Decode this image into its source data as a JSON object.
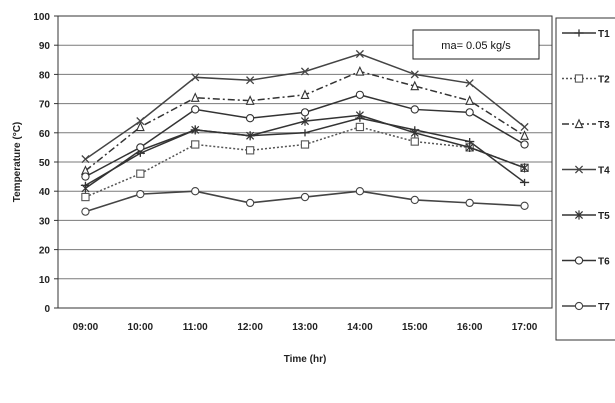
{
  "chart_data": {
    "type": "line",
    "title": "",
    "xlabel": "Time (hr)",
    "ylabel": "Temperature (°C)",
    "categories": [
      "09:00",
      "10:00",
      "11:00",
      "12:00",
      "13:00",
      "14:00",
      "15:00",
      "16:00",
      "17:00"
    ],
    "ylim": [
      0,
      100
    ],
    "yticks": [
      0,
      10,
      20,
      30,
      40,
      50,
      60,
      70,
      80,
      90,
      100
    ],
    "grid": "horizontal",
    "legend_position": "right",
    "annotation": "ma= 0.05 kg/s",
    "series": [
      {
        "name": "T1",
        "marker": "plus",
        "dash": "solid",
        "color": "#333333",
        "values": [
          42,
          53,
          61,
          59,
          60,
          65,
          61,
          57,
          43
        ]
      },
      {
        "name": "T2",
        "marker": "square",
        "dash": "dotted",
        "color": "#555555",
        "values": [
          38,
          46,
          56,
          54,
          56,
          62,
          57,
          55,
          48
        ]
      },
      {
        "name": "T3",
        "marker": "triangle",
        "dash": "dashdot",
        "color": "#333333",
        "values": [
          47,
          62,
          72,
          71,
          73,
          81,
          76,
          71,
          59
        ]
      },
      {
        "name": "T4",
        "marker": "x",
        "dash": "solid",
        "color": "#444444",
        "values": [
          51,
          64,
          79,
          78,
          81,
          87,
          80,
          77,
          62
        ]
      },
      {
        "name": "T5",
        "marker": "star",
        "dash": "solid",
        "color": "#333333",
        "values": [
          41,
          54,
          61,
          59,
          64,
          66,
          60,
          55,
          48
        ]
      },
      {
        "name": "T6",
        "marker": "circle",
        "dash": "solid",
        "color": "#333333",
        "values": [
          45,
          55,
          68,
          65,
          67,
          73,
          68,
          67,
          56
        ]
      },
      {
        "name": "T7",
        "marker": "circle",
        "dash": "solid",
        "color": "#444444",
        "values": [
          33,
          39,
          40,
          36,
          38,
          40,
          37,
          36,
          35
        ]
      }
    ]
  }
}
